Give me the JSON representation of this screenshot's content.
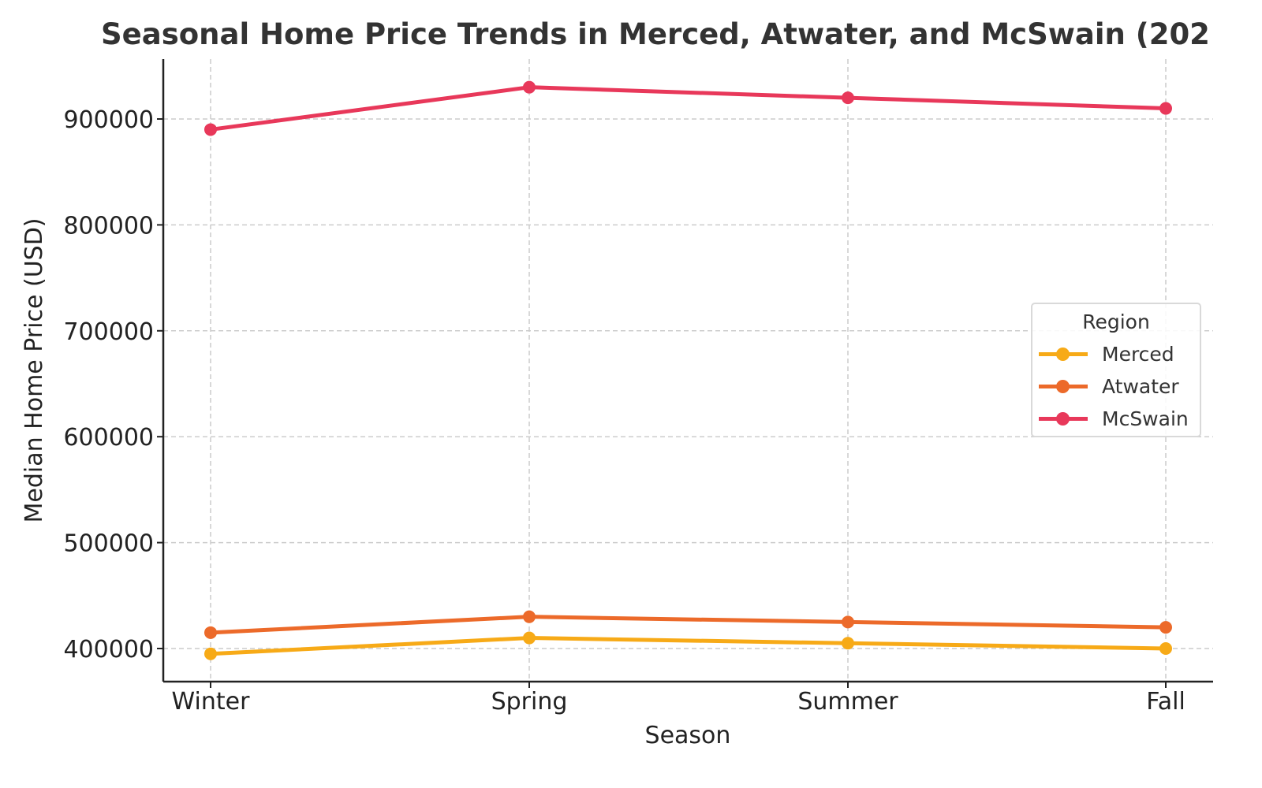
{
  "chart_data": {
    "type": "line",
    "title": "Seasonal Home Price Trends in Merced, Atwater, and McSwain (202",
    "xlabel": "Season",
    "ylabel": "Median Home Price (USD)",
    "categories": [
      "Winter",
      "Spring",
      "Summer",
      "Fall"
    ],
    "series": [
      {
        "name": "Merced",
        "color": "#F7AA17",
        "values": [
          395000,
          410000,
          405000,
          400000
        ]
      },
      {
        "name": "Atwater",
        "color": "#EC6A2A",
        "values": [
          415000,
          430000,
          425000,
          420000
        ]
      },
      {
        "name": "McSwain",
        "color": "#E8385A",
        "values": [
          890000,
          930000,
          920000,
          910000
        ]
      }
    ],
    "yticks": [
      400000,
      500000,
      600000,
      700000,
      800000,
      900000
    ],
    "ytick_labels": [
      "400000",
      "500000",
      "600000",
      "700000",
      "800000",
      "900000"
    ],
    "ylim": [
      369000,
      956500
    ],
    "grid": true,
    "legend": {
      "title": "Region",
      "position": "center right",
      "entries": [
        "Merced",
        "Atwater",
        "McSwain"
      ]
    }
  }
}
